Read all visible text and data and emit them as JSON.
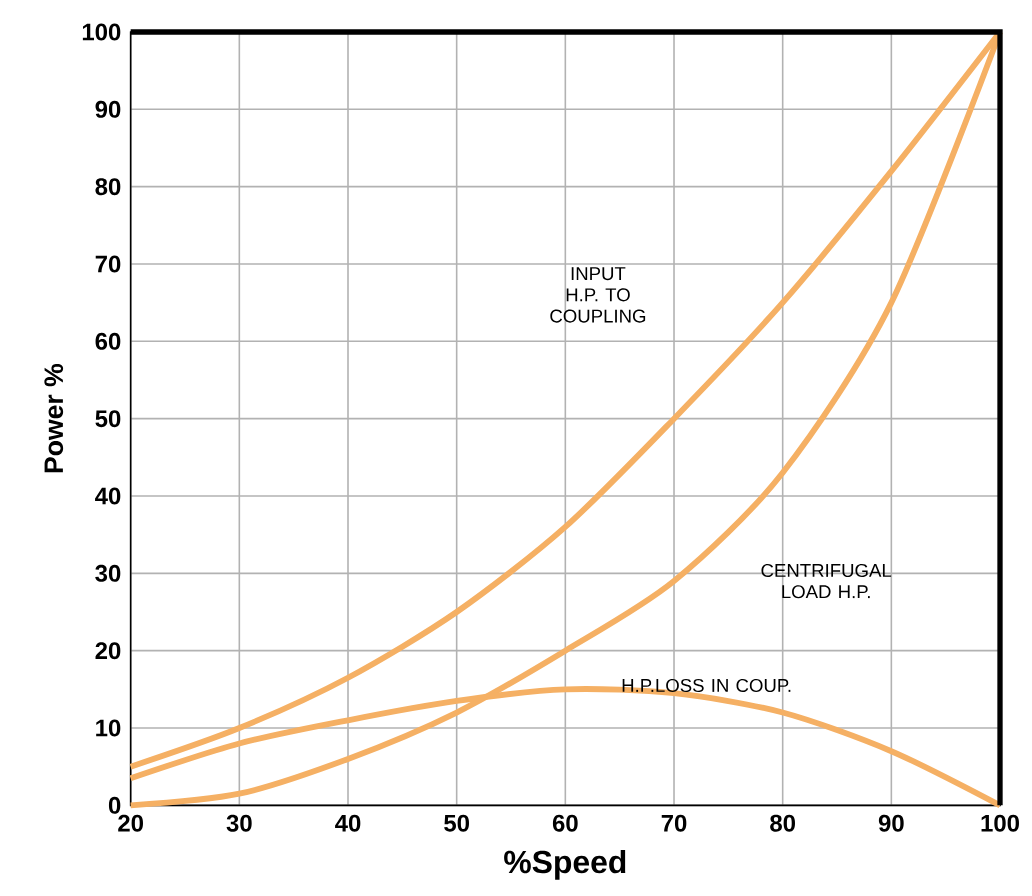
{
  "chart_data": {
    "type": "line",
    "xlabel": "%Speed",
    "ylabel": "Power %",
    "x": [
      20,
      30,
      40,
      50,
      60,
      70,
      80,
      90,
      100
    ],
    "series": [
      {
        "color": "#f5b064",
        "values": [
          5,
          10,
          16.5,
          25,
          36,
          50,
          65,
          82,
          100
        ]
      },
      {
        "color": "#f5b064",
        "values": [
          0,
          1.5,
          6,
          12,
          20,
          29,
          43,
          65,
          100
        ]
      },
      {
        "color": "#f5b064",
        "values": [
          3.5,
          8,
          11,
          13.5,
          15,
          14.5,
          12,
          7,
          0
        ]
      }
    ],
    "annotations": [
      "INPUT H.P. TO COUPLING",
      "CENTRIFUGAL LOAD H.P.",
      "H.P.LOSS IN COUP."
    ],
    "xlim": [
      20,
      100
    ],
    "ylim": [
      0,
      100
    ],
    "xticks": [
      20,
      30,
      40,
      50,
      60,
      70,
      80,
      90,
      100
    ],
    "yticks": [
      0,
      10,
      20,
      30,
      40,
      50,
      60,
      70,
      80,
      90,
      100
    ],
    "grid": true,
    "marker": "none",
    "line_style": "solid"
  }
}
